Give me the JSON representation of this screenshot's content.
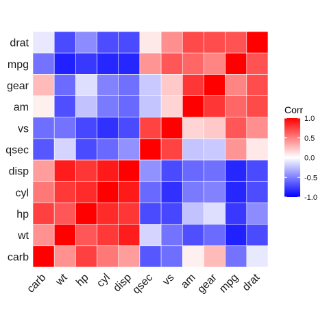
{
  "chart_data": {
    "type": "heatmap",
    "title": "",
    "xlabel": "",
    "ylabel": "",
    "x_categories": [
      "carb",
      "wt",
      "hp",
      "cyl",
      "disp",
      "qsec",
      "vs",
      "am",
      "gear",
      "mpg",
      "drat"
    ],
    "y_categories": [
      "carb",
      "wt",
      "hp",
      "cyl",
      "disp",
      "qsec",
      "vs",
      "am",
      "gear",
      "mpg",
      "drat"
    ],
    "y_order_top_to_bottom": [
      "drat",
      "mpg",
      "gear",
      "am",
      "vs",
      "qsec",
      "disp",
      "cyl",
      "hp",
      "wt",
      "carb"
    ],
    "matrix": [
      [
        1.0,
        0.43,
        0.75,
        0.53,
        0.39,
        -0.66,
        -0.57,
        0.06,
        0.27,
        -0.55,
        -0.09
      ],
      [
        0.43,
        1.0,
        0.66,
        0.78,
        0.89,
        -0.17,
        -0.55,
        -0.69,
        -0.58,
        -0.87,
        -0.71
      ],
      [
        0.75,
        0.66,
        1.0,
        0.83,
        0.79,
        -0.71,
        -0.72,
        -0.24,
        -0.13,
        -0.78,
        -0.45
      ],
      [
        0.53,
        0.78,
        0.83,
        1.0,
        0.9,
        -0.59,
        -0.81,
        -0.52,
        -0.49,
        -0.85,
        -0.7
      ],
      [
        0.39,
        0.89,
        0.79,
        0.9,
        1.0,
        -0.43,
        -0.71,
        -0.59,
        -0.56,
        -0.85,
        -0.71
      ],
      [
        -0.66,
        -0.17,
        -0.71,
        -0.59,
        -0.43,
        1.0,
        0.74,
        -0.23,
        -0.21,
        0.42,
        0.09
      ],
      [
        -0.57,
        -0.55,
        -0.72,
        -0.81,
        -0.71,
        0.74,
        1.0,
        0.17,
        0.21,
        0.66,
        0.44
      ],
      [
        0.06,
        -0.69,
        -0.24,
        -0.52,
        -0.59,
        -0.23,
        0.17,
        1.0,
        0.79,
        0.6,
        0.71
      ],
      [
        0.27,
        -0.58,
        -0.13,
        -0.49,
        -0.56,
        -0.21,
        0.21,
        0.79,
        1.0,
        0.48,
        0.7
      ],
      [
        -0.55,
        -0.87,
        -0.78,
        -0.85,
        -0.85,
        0.42,
        0.66,
        0.6,
        0.48,
        1.0,
        0.68
      ],
      [
        -0.09,
        -0.71,
        -0.45,
        -0.7,
        -0.71,
        0.09,
        0.44,
        0.71,
        0.7,
        0.68,
        1.0
      ]
    ],
    "color_scale": {
      "low": "#0000ff",
      "mid": "#ffffff",
      "high": "#ff0000",
      "limits": [
        -1,
        1
      ],
      "ticks": [
        1.0,
        0.5,
        0.0,
        -0.5,
        -1.0
      ],
      "tick_labels": [
        "1.0",
        "0.5",
        "0.0",
        "-0.5",
        "-1.0"
      ]
    },
    "legend": {
      "title": "Corr",
      "placement": "right"
    },
    "panel_background": "#ebebeb",
    "grid": true,
    "x_tick_rotation": 45
  }
}
